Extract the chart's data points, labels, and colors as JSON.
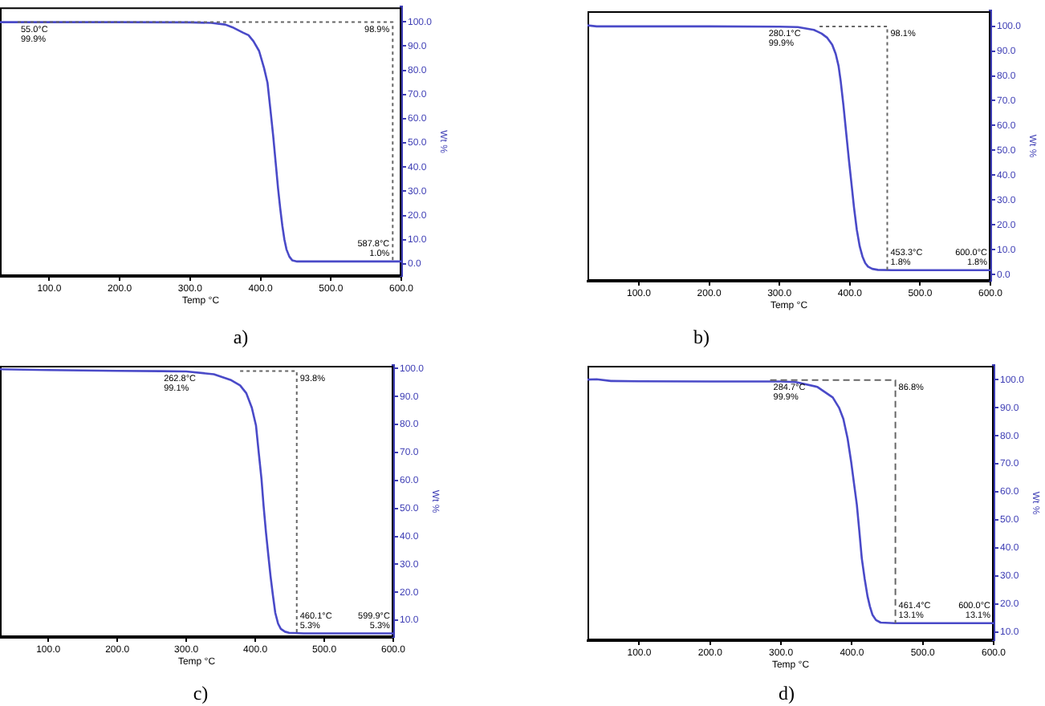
{
  "chart_data": [
    {
      "type": "line",
      "title": "a)",
      "xlabel": "Temp °C",
      "ylabel": "Wt %",
      "xlim": [
        30,
        600
      ],
      "xticks": [
        {
          "value": 100,
          "label": "100.0"
        },
        {
          "value": 200,
          "label": "200.0"
        },
        {
          "value": 300,
          "label": "300.0"
        },
        {
          "value": 400,
          "label": "400.0"
        },
        {
          "value": 500,
          "label": "500.0"
        },
        {
          "value": 600,
          "label": "600.0"
        }
      ],
      "ylim": [
        -5,
        106
      ],
      "yticks": [
        {
          "value": 0,
          "label": "0.0"
        },
        {
          "value": 10,
          "label": "10.0"
        },
        {
          "value": 20,
          "label": "20.0"
        },
        {
          "value": 30,
          "label": "30.0"
        },
        {
          "value": 40,
          "label": "40.0"
        },
        {
          "value": 50,
          "label": "50.0"
        },
        {
          "value": 60,
          "label": "60.0"
        },
        {
          "value": 70,
          "label": "70.0"
        },
        {
          "value": 80,
          "label": "80.0"
        },
        {
          "value": 90,
          "label": "90.0"
        },
        {
          "value": 100,
          "label": "100.0"
        }
      ],
      "series": [
        {
          "color": "#4a4ac8",
          "x": [
            30,
            100,
            200,
            300,
            330,
            350,
            360,
            375,
            383,
            390,
            398,
            405,
            410,
            414,
            418,
            422,
            425,
            428,
            431,
            434,
            437,
            441,
            445,
            452,
            500,
            600
          ],
          "values": [
            99.9,
            99.9,
            99.9,
            99.8,
            99.6,
            98.9,
            97.8,
            95.6,
            94.5,
            92,
            88,
            81,
            74.8,
            64,
            53,
            40.5,
            31,
            23,
            15.8,
            10,
            5.9,
            3,
            1.5,
            1.0,
            1.0,
            1.0
          ]
        },
        {
          "color": "#666666",
          "line_style": "dotted",
          "x": [
            55,
            587.8,
            587.8
          ],
          "values": [
            99.9,
            99.9,
            1.0
          ]
        }
      ],
      "annotations": [
        {
          "text": "55.0°C\n99.9%",
          "x": 55,
          "y": 99.9
        },
        {
          "text": "98.9%",
          "x": 587.8,
          "y": 99.9
        },
        {
          "text": "587.8°C\n1.0%",
          "x": 587.8,
          "y": 1.0
        }
      ]
    },
    {
      "type": "line",
      "title": "b)",
      "xlabel": "Temp °C",
      "ylabel": "Wt %",
      "xlim": [
        27,
        600
      ],
      "xticks": [
        {
          "value": 100,
          "label": "100.0"
        },
        {
          "value": 200,
          "label": "200.0"
        },
        {
          "value": 300,
          "label": "300.0"
        },
        {
          "value": 400,
          "label": "400.0"
        },
        {
          "value": 500,
          "label": "500.0"
        },
        {
          "value": 600,
          "label": "600.0"
        }
      ],
      "ylim": [
        -2.5,
        106
      ],
      "yticks": [
        {
          "value": 0,
          "label": "0.0"
        },
        {
          "value": 10,
          "label": "10.0"
        },
        {
          "value": 20,
          "label": "20.0"
        },
        {
          "value": 30,
          "label": "30.0"
        },
        {
          "value": 40,
          "label": "40.0"
        },
        {
          "value": 50,
          "label": "50.0"
        },
        {
          "value": 60,
          "label": "60.0"
        },
        {
          "value": 70,
          "label": "70.0"
        },
        {
          "value": 80,
          "label": "80.0"
        },
        {
          "value": 90,
          "label": "90.0"
        },
        {
          "value": 100,
          "label": "100.0"
        }
      ],
      "series": [
        {
          "color": "#4a4ac8",
          "x": [
            27,
            40,
            100,
            200,
            300,
            326,
            349,
            360,
            368,
            375,
            380,
            384,
            387,
            391,
            395,
            399,
            403,
            406,
            410,
            414,
            418,
            422,
            426,
            432,
            440,
            460,
            600
          ],
          "values": [
            100.3,
            99.9,
            99.9,
            99.9,
            99.8,
            99.6,
            98.5,
            97,
            95.3,
            92.5,
            88.8,
            84,
            78,
            68,
            56.7,
            45.5,
            35,
            27,
            18,
            11.5,
            7.3,
            4.6,
            3.2,
            2.3,
            1.9,
            1.8,
            1.8
          ]
        },
        {
          "color": "#666666",
          "line_style": "dotted",
          "x": [
            357,
            453.3,
            453.3
          ],
          "values": [
            99.9,
            99.9,
            1.8
          ]
        }
      ],
      "annotations": [
        {
          "text": "280.1°C\n99.9%",
          "x": 280.1,
          "y": 99.9
        },
        {
          "text": "98.1%",
          "x": 453.3,
          "y": 99.9
        },
        {
          "text": "453.3°C\n1.8%",
          "x": 453.3,
          "y": 1.8
        },
        {
          "text": "600.0°C\n1.8%",
          "x": 600,
          "y": 1.8
        }
      ]
    },
    {
      "type": "line",
      "title": "c)",
      "xlabel": "Temp °C",
      "ylabel": "Wt %",
      "xlim": [
        30,
        600
      ],
      "xticks": [
        {
          "value": 100,
          "label": "100.0"
        },
        {
          "value": 200,
          "label": "200.0"
        },
        {
          "value": 300,
          "label": "300.0"
        },
        {
          "value": 400,
          "label": "400.0"
        },
        {
          "value": 500,
          "label": "500.0"
        },
        {
          "value": 600,
          "label": "600.0"
        }
      ],
      "ylim": [
        4,
        101
      ],
      "yticks": [
        {
          "value": 10,
          "label": "10.0"
        },
        {
          "value": 20,
          "label": "20.0"
        },
        {
          "value": 30,
          "label": "30.0"
        },
        {
          "value": 40,
          "label": "40.0"
        },
        {
          "value": 50,
          "label": "50.0"
        },
        {
          "value": 60,
          "label": "60.0"
        },
        {
          "value": 70,
          "label": "70.0"
        },
        {
          "value": 80,
          "label": "80.0"
        },
        {
          "value": 90,
          "label": "90.0"
        },
        {
          "value": 100,
          "label": "100.0"
        }
      ],
      "series": [
        {
          "color": "#4a4ac8",
          "x": [
            30,
            100,
            200,
            262.8,
            300,
            340,
            364,
            378,
            387,
            395,
            401,
            405,
            409,
            412,
            415.5,
            419,
            422,
            425.5,
            429,
            433,
            437,
            443,
            449,
            470,
            600
          ],
          "values": [
            99.8,
            99.5,
            99.2,
            99.1,
            99.0,
            98.0,
            96,
            94,
            91.2,
            86,
            79.7,
            70,
            60.5,
            51,
            41.4,
            33,
            26,
            19,
            12.6,
            8.8,
            6.9,
            5.9,
            5.5,
            5.3,
            5.3
          ]
        },
        {
          "color": "#666666",
          "line_style": "dotted",
          "x": [
            378,
            460.1,
            460.1
          ],
          "values": [
            99.1,
            99.1,
            5.3
          ]
        }
      ],
      "annotations": [
        {
          "text": "262.8°C\n99.1%",
          "x": 262.8,
          "y": 99.1
        },
        {
          "text": "93.8%",
          "x": 460.1,
          "y": 99.1
        },
        {
          "text": "460.1°C\n5.3%",
          "x": 460.1,
          "y": 5.3
        },
        {
          "text": "599.9°C\n5.3%",
          "x": 599.9,
          "y": 5.3
        }
      ]
    },
    {
      "type": "line",
      "title": "d)",
      "xlabel": "Temp °C",
      "ylabel": "Wt %",
      "xlim": [
        27,
        600
      ],
      "xticks": [
        {
          "value": 100,
          "label": "100.0"
        },
        {
          "value": 200,
          "label": "200.0"
        },
        {
          "value": 300,
          "label": "300.0"
        },
        {
          "value": 400,
          "label": "400.0"
        },
        {
          "value": 500,
          "label": "500.0"
        },
        {
          "value": 600,
          "label": "600.0"
        }
      ],
      "ylim": [
        7,
        105
      ],
      "yticks": [
        {
          "value": 10,
          "label": "10.0"
        },
        {
          "value": 20,
          "label": "20.0"
        },
        {
          "value": 30,
          "label": "30.0"
        },
        {
          "value": 40,
          "label": "40.0"
        },
        {
          "value": 50,
          "label": "50.0"
        },
        {
          "value": 60,
          "label": "60.0"
        },
        {
          "value": 70,
          "label": "70.0"
        },
        {
          "value": 80,
          "label": "80.0"
        },
        {
          "value": 90,
          "label": "90.0"
        },
        {
          "value": 100,
          "label": "100.0"
        }
      ],
      "series": [
        {
          "color": "#4a4ac8",
          "x": [
            27,
            40,
            60,
            100,
            200,
            300,
            321,
            351,
            373,
            382,
            388,
            394,
            399,
            403,
            407,
            410.5,
            414,
            418,
            422,
            425.5,
            429,
            434,
            440.6,
            460,
            600
          ],
          "values": [
            100.1,
            100.2,
            99.6,
            99.5,
            99.4,
            99.4,
            99.2,
            97.5,
            93.7,
            90,
            86,
            79,
            70.7,
            63,
            55.4,
            46,
            36.2,
            29,
            22.8,
            19,
            16.1,
            14.2,
            13.3,
            13.1,
            13.1
          ]
        },
        {
          "color": "#666666",
          "line_style": "dashed",
          "x": [
            284.7,
            461.4,
            461.4
          ],
          "values": [
            99.9,
            99.9,
            13.1
          ]
        }
      ],
      "annotations": [
        {
          "text": "284.7°C\n99.9%",
          "x": 284.7,
          "y": 99.9
        },
        {
          "text": "86.8%",
          "x": 461.4,
          "y": 99.9
        },
        {
          "text": "461.4°C\n13.1%",
          "x": 461.4,
          "y": 13.1
        },
        {
          "text": "600.0°C\n13.1%",
          "x": 600,
          "y": 13.1
        }
      ]
    }
  ]
}
